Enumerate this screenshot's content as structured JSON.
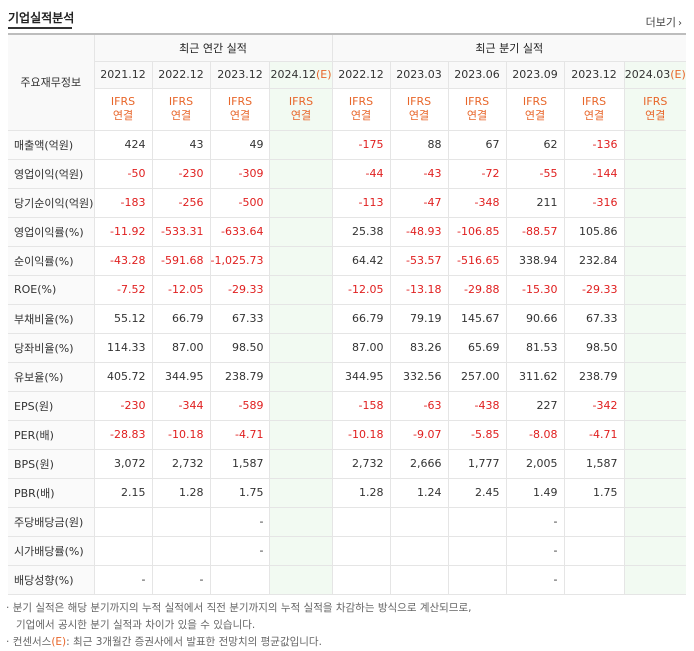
{
  "header": {
    "title": "기업실적분석",
    "more_label": "더보기"
  },
  "table": {
    "label_head": "주요재무정보",
    "group_annual": "최근 연간 실적",
    "group_quarter": "최근 분기 실적",
    "periods": [
      "2021.12",
      "2022.12",
      "2023.12",
      "2024.12",
      "2022.12",
      "2023.03",
      "2023.06",
      "2023.09",
      "2023.12",
      "2024.03"
    ],
    "estimate_suffix": "(E)",
    "ifrs_top": "IFRS",
    "ifrs_bottom": "연결",
    "rows": [
      {
        "label": "매출액(억원)",
        "values": [
          "424",
          "43",
          "49",
          "",
          "-175",
          "88",
          "67",
          "62",
          "-136",
          ""
        ]
      },
      {
        "label": "영업이익(억원)",
        "values": [
          "-50",
          "-230",
          "-309",
          "",
          "-44",
          "-43",
          "-72",
          "-55",
          "-144",
          ""
        ]
      },
      {
        "label": "당기순이익(억원)",
        "values": [
          "-183",
          "-256",
          "-500",
          "",
          "-113",
          "-47",
          "-348",
          "211",
          "-316",
          ""
        ]
      },
      {
        "label": "영업이익률(%)",
        "values": [
          "-11.92",
          "-533.31",
          "-633.64",
          "",
          "25.38",
          "-48.93",
          "-106.85",
          "-88.57",
          "105.86",
          ""
        ]
      },
      {
        "label": "순이익률(%)",
        "values": [
          "-43.28",
          "-591.68",
          "-1,025.73",
          "",
          "64.42",
          "-53.57",
          "-516.65",
          "338.94",
          "232.84",
          ""
        ]
      },
      {
        "label": "ROE(%)",
        "values": [
          "-7.52",
          "-12.05",
          "-29.33",
          "",
          "-12.05",
          "-13.18",
          "-29.88",
          "-15.30",
          "-29.33",
          ""
        ]
      },
      {
        "label": "부채비율(%)",
        "values": [
          "55.12",
          "66.79",
          "67.33",
          "",
          "66.79",
          "79.19",
          "145.67",
          "90.66",
          "67.33",
          ""
        ]
      },
      {
        "label": "당좌비율(%)",
        "values": [
          "114.33",
          "87.00",
          "98.50",
          "",
          "87.00",
          "83.26",
          "65.69",
          "81.53",
          "98.50",
          ""
        ]
      },
      {
        "label": "유보율(%)",
        "values": [
          "405.72",
          "344.95",
          "238.79",
          "",
          "344.95",
          "332.56",
          "257.00",
          "311.62",
          "238.79",
          ""
        ]
      },
      {
        "label": "EPS(원)",
        "values": [
          "-230",
          "-344",
          "-589",
          "",
          "-158",
          "-63",
          "-438",
          "227",
          "-342",
          ""
        ]
      },
      {
        "label": "PER(배)",
        "values": [
          "-28.83",
          "-10.18",
          "-4.71",
          "",
          "-10.18",
          "-9.07",
          "-5.85",
          "-8.08",
          "-4.71",
          ""
        ]
      },
      {
        "label": "BPS(원)",
        "values": [
          "3,072",
          "2,732",
          "1,587",
          "",
          "2,732",
          "2,666",
          "1,777",
          "2,005",
          "1,587",
          ""
        ]
      },
      {
        "label": "PBR(배)",
        "values": [
          "2.15",
          "1.28",
          "1.75",
          "",
          "1.28",
          "1.24",
          "2.45",
          "1.49",
          "1.75",
          ""
        ]
      },
      {
        "label": "주당배당금(원)",
        "values": [
          "",
          "",
          "-",
          "",
          "",
          "",
          "",
          "-",
          "",
          ""
        ]
      },
      {
        "label": "시가배당률(%)",
        "values": [
          "",
          "",
          "-",
          "",
          "",
          "",
          "",
          "-",
          "",
          ""
        ]
      },
      {
        "label": "배당성향(%)",
        "values": [
          "-",
          "-",
          "",
          "",
          "",
          "",
          "",
          "-",
          "",
          ""
        ]
      }
    ]
  },
  "notes": {
    "line1": "분기 실적은 해당 분기까지의 누적 실적에서 직전 분기까지의 누적 실적을 차감하는 방식으로 계산되므로,",
    "line2": "기업에서 공시한 분기 실적과 차이가 있을 수 있습니다.",
    "line3_pre": "컨센서스",
    "line3_tag": "(E)",
    "line3_post": ": 최근 3개월간 증권사에서 발표한 전망치의 평균값입니다."
  }
}
